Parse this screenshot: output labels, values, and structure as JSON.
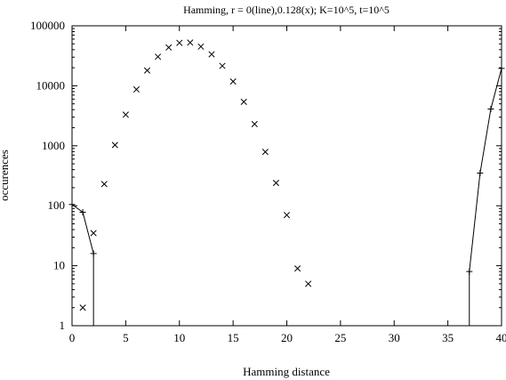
{
  "chart_data": {
    "type": "scatter",
    "title": "Hamming, r = 0(line),0.128(x); K=10^5, t=10^5",
    "xlabel": "Hamming distance",
    "ylabel": "occurences",
    "xlim": [
      0,
      40
    ],
    "ylim": [
      1,
      100000
    ],
    "yscale": "log",
    "grid": false,
    "x_ticks": [
      0,
      5,
      10,
      15,
      20,
      25,
      30,
      35,
      40
    ],
    "y_ticks": [
      1,
      10,
      100,
      1000,
      10000,
      100000
    ],
    "series": [
      {
        "marker": "plus-line",
        "segments": [
          [
            [
              0,
              105
            ],
            [
              1,
              78
            ],
            [
              2,
              16
            ],
            [
              2,
              1
            ]
          ],
          [
            [
              37,
              1
            ],
            [
              37,
              8
            ],
            [
              38,
              350
            ],
            [
              39,
              4100
            ],
            [
              40,
              19500
            ]
          ]
        ]
      },
      {
        "marker": "x",
        "points": [
          [
            1,
            2
          ],
          [
            2,
            35
          ],
          [
            3,
            230
          ],
          [
            4,
            1030
          ],
          [
            5,
            3300
          ],
          [
            6,
            8700
          ],
          [
            7,
            18000
          ],
          [
            8,
            30500
          ],
          [
            9,
            43500
          ],
          [
            10,
            52000
          ],
          [
            11,
            52500
          ],
          [
            12,
            45000
          ],
          [
            13,
            33500
          ],
          [
            14,
            21500
          ],
          [
            15,
            11800
          ],
          [
            16,
            5400
          ],
          [
            17,
            2300
          ],
          [
            18,
            790
          ],
          [
            19,
            240
          ],
          [
            20,
            70
          ],
          [
            21,
            9
          ],
          [
            22,
            5
          ]
        ]
      }
    ]
  }
}
